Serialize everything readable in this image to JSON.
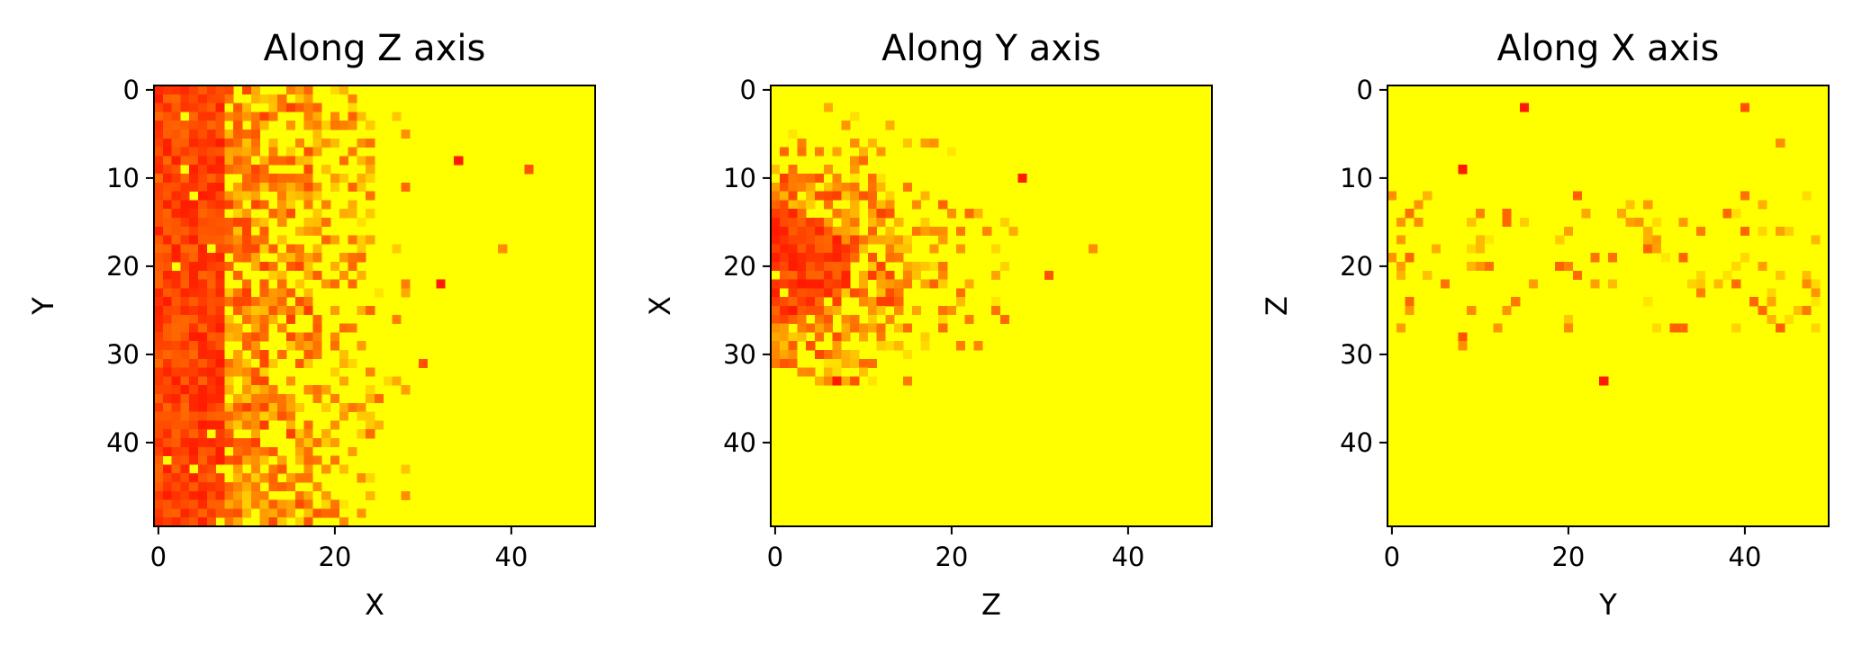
{
  "chart_data": [
    {
      "type": "heatmap",
      "title": "Along Z axis",
      "xlabel": "X",
      "ylabel": "Y",
      "grid_size": [
        50,
        50
      ],
      "xlim": [
        0,
        49
      ],
      "ylim": [
        49,
        0
      ],
      "xticks": [
        0,
        20,
        40
      ],
      "yticks": [
        0,
        10,
        20,
        30,
        40
      ],
      "grid": false,
      "colormap": "red-to-yellow (autumn)",
      "pattern": "dense red/orange columns for X 0-8, mixed orange/yellow speckle for X 9-27, sparse outliers beyond, solid yellow X > 30",
      "outlier_cells": [
        [
          34,
          8
        ],
        [
          42,
          9
        ],
        [
          39,
          18
        ],
        [
          32,
          22
        ],
        [
          30,
          31
        ],
        [
          28,
          46
        ]
      ]
    },
    {
      "type": "heatmap",
      "title": "Along Y axis",
      "xlabel": "Z",
      "ylabel": "X",
      "grid_size": [
        50,
        50
      ],
      "xlim": [
        0,
        49
      ],
      "ylim": [
        49,
        0
      ],
      "xticks": [
        0,
        20,
        40
      ],
      "yticks": [
        0,
        10,
        20,
        30,
        40
      ],
      "grid": false,
      "colormap": "red-to-yellow (autumn)",
      "pattern": "red/orange blob in upper-left (Z 0-20, X 0-30), densest near X 20-26, solid yellow elsewhere",
      "outlier_cells": [
        [
          28,
          10
        ],
        [
          31,
          21
        ],
        [
          36,
          18
        ],
        [
          7,
          33
        ],
        [
          9,
          33
        ]
      ]
    },
    {
      "type": "heatmap",
      "title": "Along X axis",
      "xlabel": "Y",
      "ylabel": "Z",
      "grid_size": [
        50,
        50
      ],
      "xlim": [
        0,
        49
      ],
      "ylim": [
        49,
        0
      ],
      "xticks": [
        0,
        20,
        40
      ],
      "yticks": [
        0,
        10,
        20,
        30,
        40
      ],
      "grid": false,
      "colormap": "red-to-yellow (autumn)",
      "pattern": "mostly yellow with scattered red/orange cells concentrated in Z band 12-28",
      "outlier_cells": [
        [
          15,
          2
        ],
        [
          40,
          2
        ],
        [
          44,
          6
        ],
        [
          8,
          9
        ],
        [
          8,
          28
        ],
        [
          8,
          29
        ],
        [
          24,
          33
        ]
      ]
    }
  ],
  "colors": {
    "low": "#ff1a00",
    "high": "#ffff00",
    "background": "#ffffff",
    "frame": "#000000"
  }
}
